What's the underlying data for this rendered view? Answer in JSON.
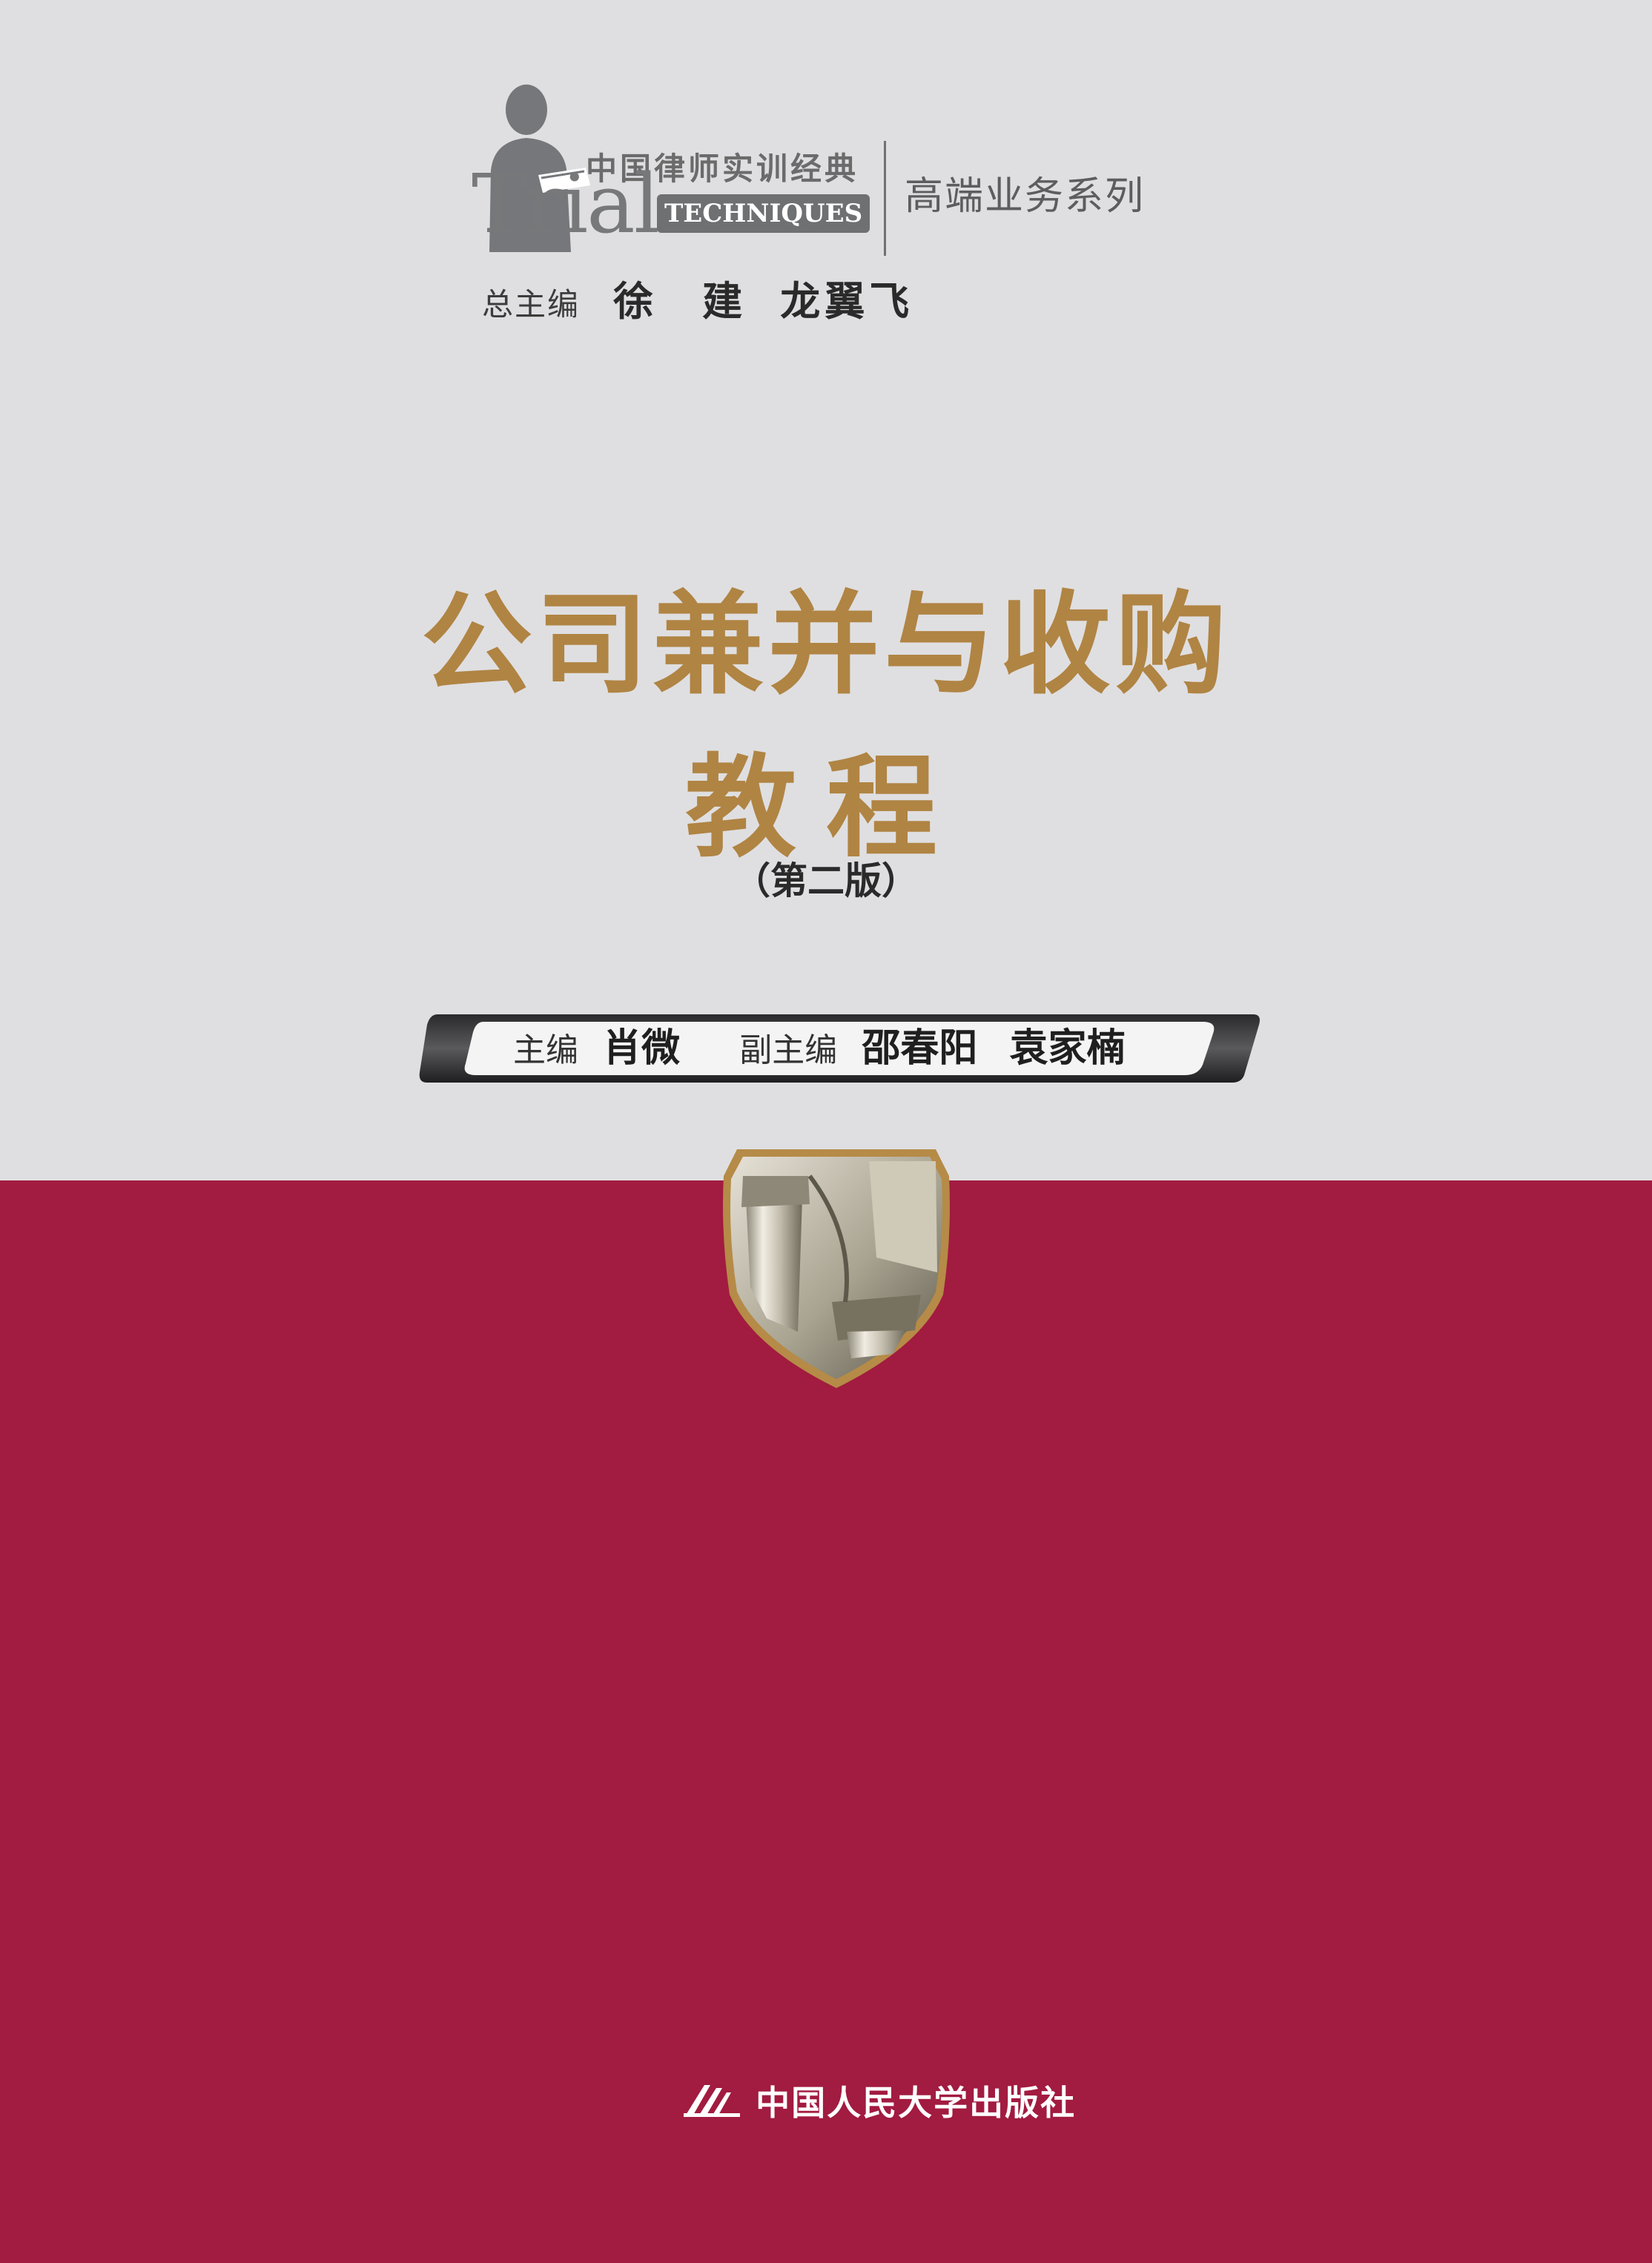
{
  "series": {
    "name_cn": "中国律师实训经典",
    "name_en": "Trial",
    "badge": "TECHNIQUES",
    "subseries": "高端业务系列",
    "chief_editor_label": "总主编",
    "chief_editors": [
      "徐　建",
      "龙翼飞"
    ]
  },
  "book": {
    "title_line1": "公司兼并与收购",
    "title_line2": "教程",
    "edition": "（第二版）"
  },
  "editors": {
    "editor_label": "主编",
    "editor_name": "肖微",
    "deputy_label": "副主编",
    "deputy_names": [
      "邵春阳",
      "袁家楠"
    ]
  },
  "publisher": {
    "name": "中国人民大学出版社"
  },
  "colors": {
    "top_background": "#dfdfe1",
    "bottom_background": "#a21b40",
    "title_gold": "#b08443"
  },
  "icons": {
    "lawyer": "lawyer-silhouette-icon",
    "emblem": "column-shield-emblem",
    "publisher": "publisher-logo-icon"
  }
}
